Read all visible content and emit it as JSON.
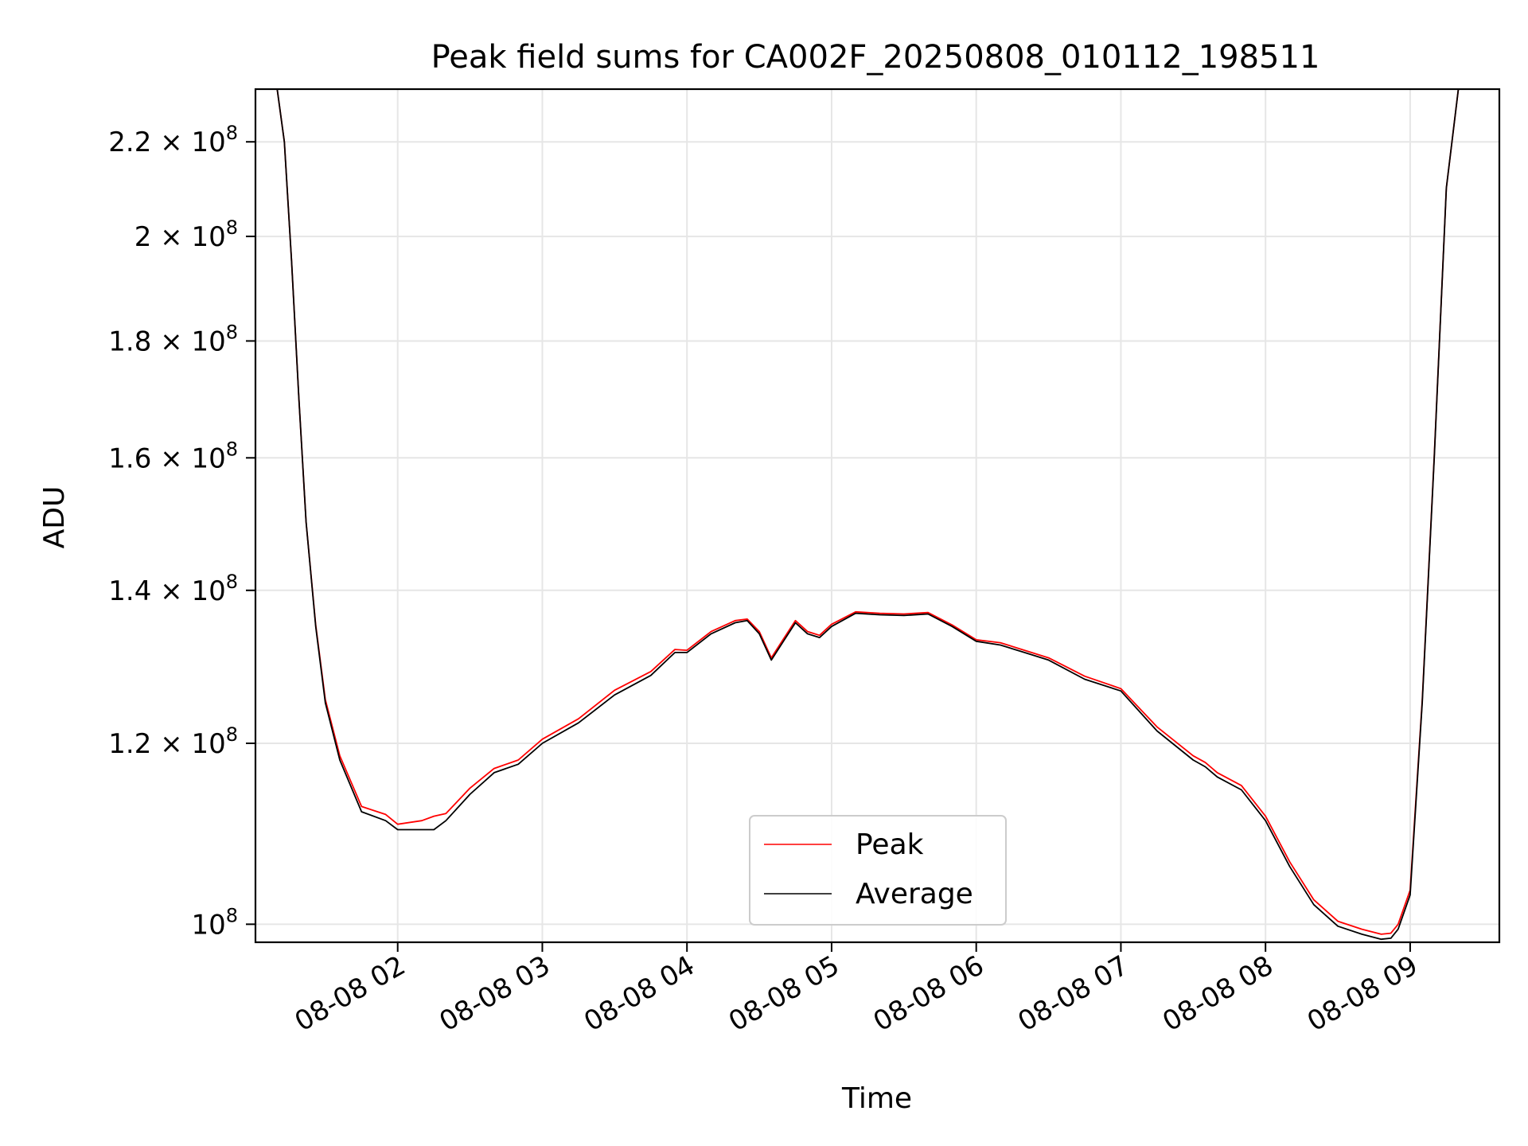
{
  "chart_data": {
    "type": "line",
    "title": "Peak field sums for CA002F_20250808_010112_198511",
    "xlabel": "Time",
    "ylabel": "ADU",
    "yscale": "log",
    "ylim": [
      98200000,
      232000000
    ],
    "xlim": [
      "08-08 01:01",
      "08-08 09:37"
    ],
    "grid": true,
    "legend_position": "bottom-center",
    "x_ticks": [
      {
        "label": "08-08 02",
        "time": "08-08 02:00"
      },
      {
        "label": "08-08 03",
        "time": "08-08 03:00"
      },
      {
        "label": "08-08 04",
        "time": "08-08 04:00"
      },
      {
        "label": "08-08 05",
        "time": "08-08 05:00"
      },
      {
        "label": "08-08 06",
        "time": "08-08 06:00"
      },
      {
        "label": "08-08 07",
        "time": "08-08 07:00"
      },
      {
        "label": "08-08 08",
        "time": "08-08 08:00"
      },
      {
        "label": "08-08 09",
        "time": "08-08 09:00"
      }
    ],
    "y_ticks": [
      {
        "base": "10",
        "mant": "",
        "exp": "8",
        "value": 100000000
      },
      {
        "base": "10",
        "mant": "1.2",
        "exp": "8",
        "value": 120000000
      },
      {
        "base": "10",
        "mant": "1.4",
        "exp": "8",
        "value": 140000000
      },
      {
        "base": "10",
        "mant": "1.6",
        "exp": "8",
        "value": 160000000
      },
      {
        "base": "10",
        "mant": "1.8",
        "exp": "8",
        "value": 180000000
      },
      {
        "base": "10",
        "mant": "2",
        "exp": "8",
        "value": 200000000
      },
      {
        "base": "10",
        "mant": "2.2",
        "exp": "8",
        "value": 220000000
      }
    ],
    "series": [
      {
        "name": "Average",
        "color": "#000000",
        "x": [
          "08-08 01:01",
          "08-08 01:10",
          "08-08 01:13",
          "08-08 01:16",
          "08-08 01:19",
          "08-08 01:22",
          "08-08 01:26",
          "08-08 01:30",
          "08-08 01:36",
          "08-08 01:45",
          "08-08 01:55",
          "08-08 02:00",
          "08-08 02:10",
          "08-08 02:15",
          "08-08 02:20",
          "08-08 02:30",
          "08-08 02:40",
          "08-08 02:50",
          "08-08 03:00",
          "08-08 03:15",
          "08-08 03:30",
          "08-08 03:45",
          "08-08 03:55",
          "08-08 04:00",
          "08-08 04:10",
          "08-08 04:20",
          "08-08 04:25",
          "08-08 04:30",
          "08-08 04:35",
          "08-08 04:40",
          "08-08 04:45",
          "08-08 04:50",
          "08-08 04:55",
          "08-08 05:00",
          "08-08 05:10",
          "08-08 05:20",
          "08-08 05:30",
          "08-08 05:40",
          "08-08 05:50",
          "08-08 06:00",
          "08-08 06:10",
          "08-08 06:20",
          "08-08 06:30",
          "08-08 06:45",
          "08-08 07:00",
          "08-08 07:15",
          "08-08 07:30",
          "08-08 07:35",
          "08-08 07:40",
          "08-08 07:50",
          "08-08 08:00",
          "08-08 08:10",
          "08-08 08:20",
          "08-08 08:30",
          "08-08 08:40",
          "08-08 08:48",
          "08-08 08:52",
          "08-08 08:55",
          "08-08 09:00",
          "08-08 09:05",
          "08-08 09:10",
          "08-08 09:15",
          "08-08 09:20",
          "08-08 09:25",
          "08-08 09:30",
          "08-08 09:37"
        ],
        "y": [
          232000000,
          232000000,
          220000000,
          195000000,
          170000000,
          150000000,
          135000000,
          125000000,
          118000000,
          112000000,
          111000000,
          110000000,
          110000000,
          110000000,
          111000000,
          114000000,
          116500000,
          117500000,
          120000000,
          122500000,
          126000000,
          128500000,
          131500000,
          131500000,
          134000000,
          135500000,
          135800000,
          134000000,
          130500000,
          133000000,
          135500000,
          134000000,
          133500000,
          135000000,
          136800000,
          136600000,
          136500000,
          136700000,
          135000000,
          133000000,
          132500000,
          131500000,
          130500000,
          128000000,
          126500000,
          121500000,
          118000000,
          117200000,
          116000000,
          114500000,
          111000000,
          106000000,
          102000000,
          99800000,
          99000000,
          98500000,
          98600000,
          99500000,
          103000000,
          125000000,
          160000000,
          210000000,
          232000000,
          232000000,
          232000000,
          232000000
        ]
      },
      {
        "name": "Peak",
        "color": "#ff0000",
        "x": [
          "08-08 01:01",
          "08-08 01:10",
          "08-08 01:13",
          "08-08 01:16",
          "08-08 01:19",
          "08-08 01:22",
          "08-08 01:26",
          "08-08 01:30",
          "08-08 01:36",
          "08-08 01:45",
          "08-08 01:55",
          "08-08 02:00",
          "08-08 02:10",
          "08-08 02:15",
          "08-08 02:20",
          "08-08 02:30",
          "08-08 02:40",
          "08-08 02:50",
          "08-08 03:00",
          "08-08 03:15",
          "08-08 03:30",
          "08-08 03:45",
          "08-08 03:55",
          "08-08 04:00",
          "08-08 04:10",
          "08-08 04:20",
          "08-08 04:25",
          "08-08 04:30",
          "08-08 04:35",
          "08-08 04:40",
          "08-08 04:45",
          "08-08 04:50",
          "08-08 04:55",
          "08-08 05:00",
          "08-08 05:10",
          "08-08 05:20",
          "08-08 05:30",
          "08-08 05:40",
          "08-08 05:50",
          "08-08 06:00",
          "08-08 06:10",
          "08-08 06:20",
          "08-08 06:30",
          "08-08 06:45",
          "08-08 07:00",
          "08-08 07:15",
          "08-08 07:30",
          "08-08 07:35",
          "08-08 07:40",
          "08-08 07:50",
          "08-08 08:00",
          "08-08 08:10",
          "08-08 08:20",
          "08-08 08:30",
          "08-08 08:40",
          "08-08 08:48",
          "08-08 08:52",
          "08-08 08:55",
          "08-08 09:00",
          "08-08 09:05",
          "08-08 09:10",
          "08-08 09:15",
          "08-08 09:20",
          "08-08 09:25",
          "08-08 09:30",
          "08-08 09:37"
        ],
        "y": [
          232000000,
          232000000,
          220000000,
          195000000,
          170000000,
          150000000,
          135200000,
          125400000,
          118500000,
          112600000,
          111700000,
          110600000,
          111000000,
          111500000,
          111800000,
          114700000,
          117000000,
          118000000,
          120500000,
          123000000,
          126600000,
          129000000,
          131900000,
          131800000,
          134300000,
          135800000,
          136000000,
          134300000,
          130800000,
          133300000,
          135800000,
          134300000,
          133800000,
          135300000,
          137000000,
          136800000,
          136700000,
          136900000,
          135200000,
          133200000,
          132800000,
          131800000,
          130800000,
          128400000,
          126800000,
          122000000,
          118500000,
          117700000,
          116500000,
          115000000,
          111500000,
          106500000,
          102500000,
          100300000,
          99500000,
          99000000,
          99100000,
          100000000,
          103500000,
          125300000,
          160300000,
          210000000,
          232000000,
          232000000,
          232000000,
          232000000
        ]
      }
    ]
  }
}
